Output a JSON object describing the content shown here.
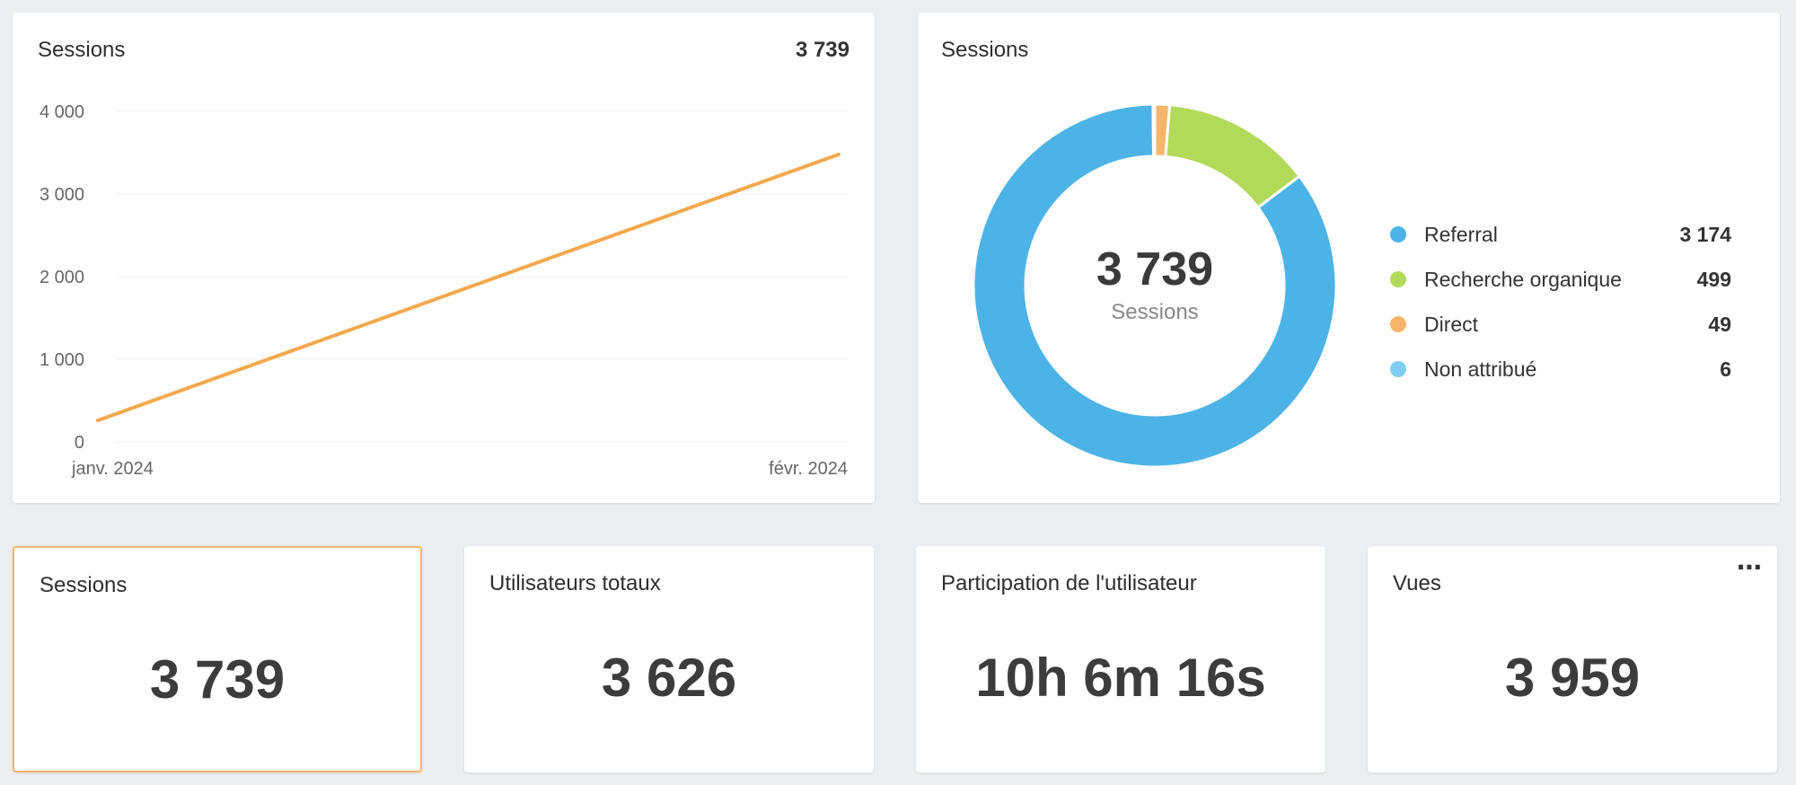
{
  "line_card": {
    "title": "Sessions",
    "total": "3 739"
  },
  "donut_card": {
    "title": "Sessions",
    "center_value": "3 739",
    "center_label": "Sessions",
    "legend": [
      {
        "label": "Referral",
        "value": "3 174",
        "color": "#4db3e6"
      },
      {
        "label": "Recherche organique",
        "value": "499",
        "color": "#b3d95a"
      },
      {
        "label": "Direct",
        "value": "49",
        "color": "#f6b56b"
      },
      {
        "label": "Non attribué",
        "value": "6",
        "color": "#7fcdf2"
      }
    ]
  },
  "kpis": {
    "sessions": {
      "title": "Sessions",
      "value": "3 739"
    },
    "users": {
      "title": "Utilisateurs totaux",
      "value": "3 626"
    },
    "engagement": {
      "title": "Participation de l'utilisateur",
      "value": "10h 6m 16s"
    },
    "views": {
      "title": "Vues",
      "value": "3 959",
      "menu_icon": "more-horizontal-icon"
    }
  },
  "chart_data": [
    {
      "type": "line",
      "title": "Sessions",
      "x": [
        "janv. 2024",
        "févr. 2024"
      ],
      "y_ticks": [
        "0",
        "1 000",
        "2 000",
        "3 000",
        "4 000"
      ],
      "series": [
        {
          "values": [
            260,
            3479
          ],
          "color": "#f2a94e"
        }
      ],
      "ylim": [
        0,
        4000
      ],
      "grid": true
    },
    {
      "type": "pie",
      "title": "Sessions",
      "donut": true,
      "categories": [
        "Referral",
        "Recherche organique",
        "Direct",
        "Non attribué"
      ],
      "values": [
        3174,
        499,
        49,
        6
      ],
      "colors": [
        "#4db3e6",
        "#b3d95a",
        "#f6b56b",
        "#7fcdf2"
      ]
    }
  ]
}
